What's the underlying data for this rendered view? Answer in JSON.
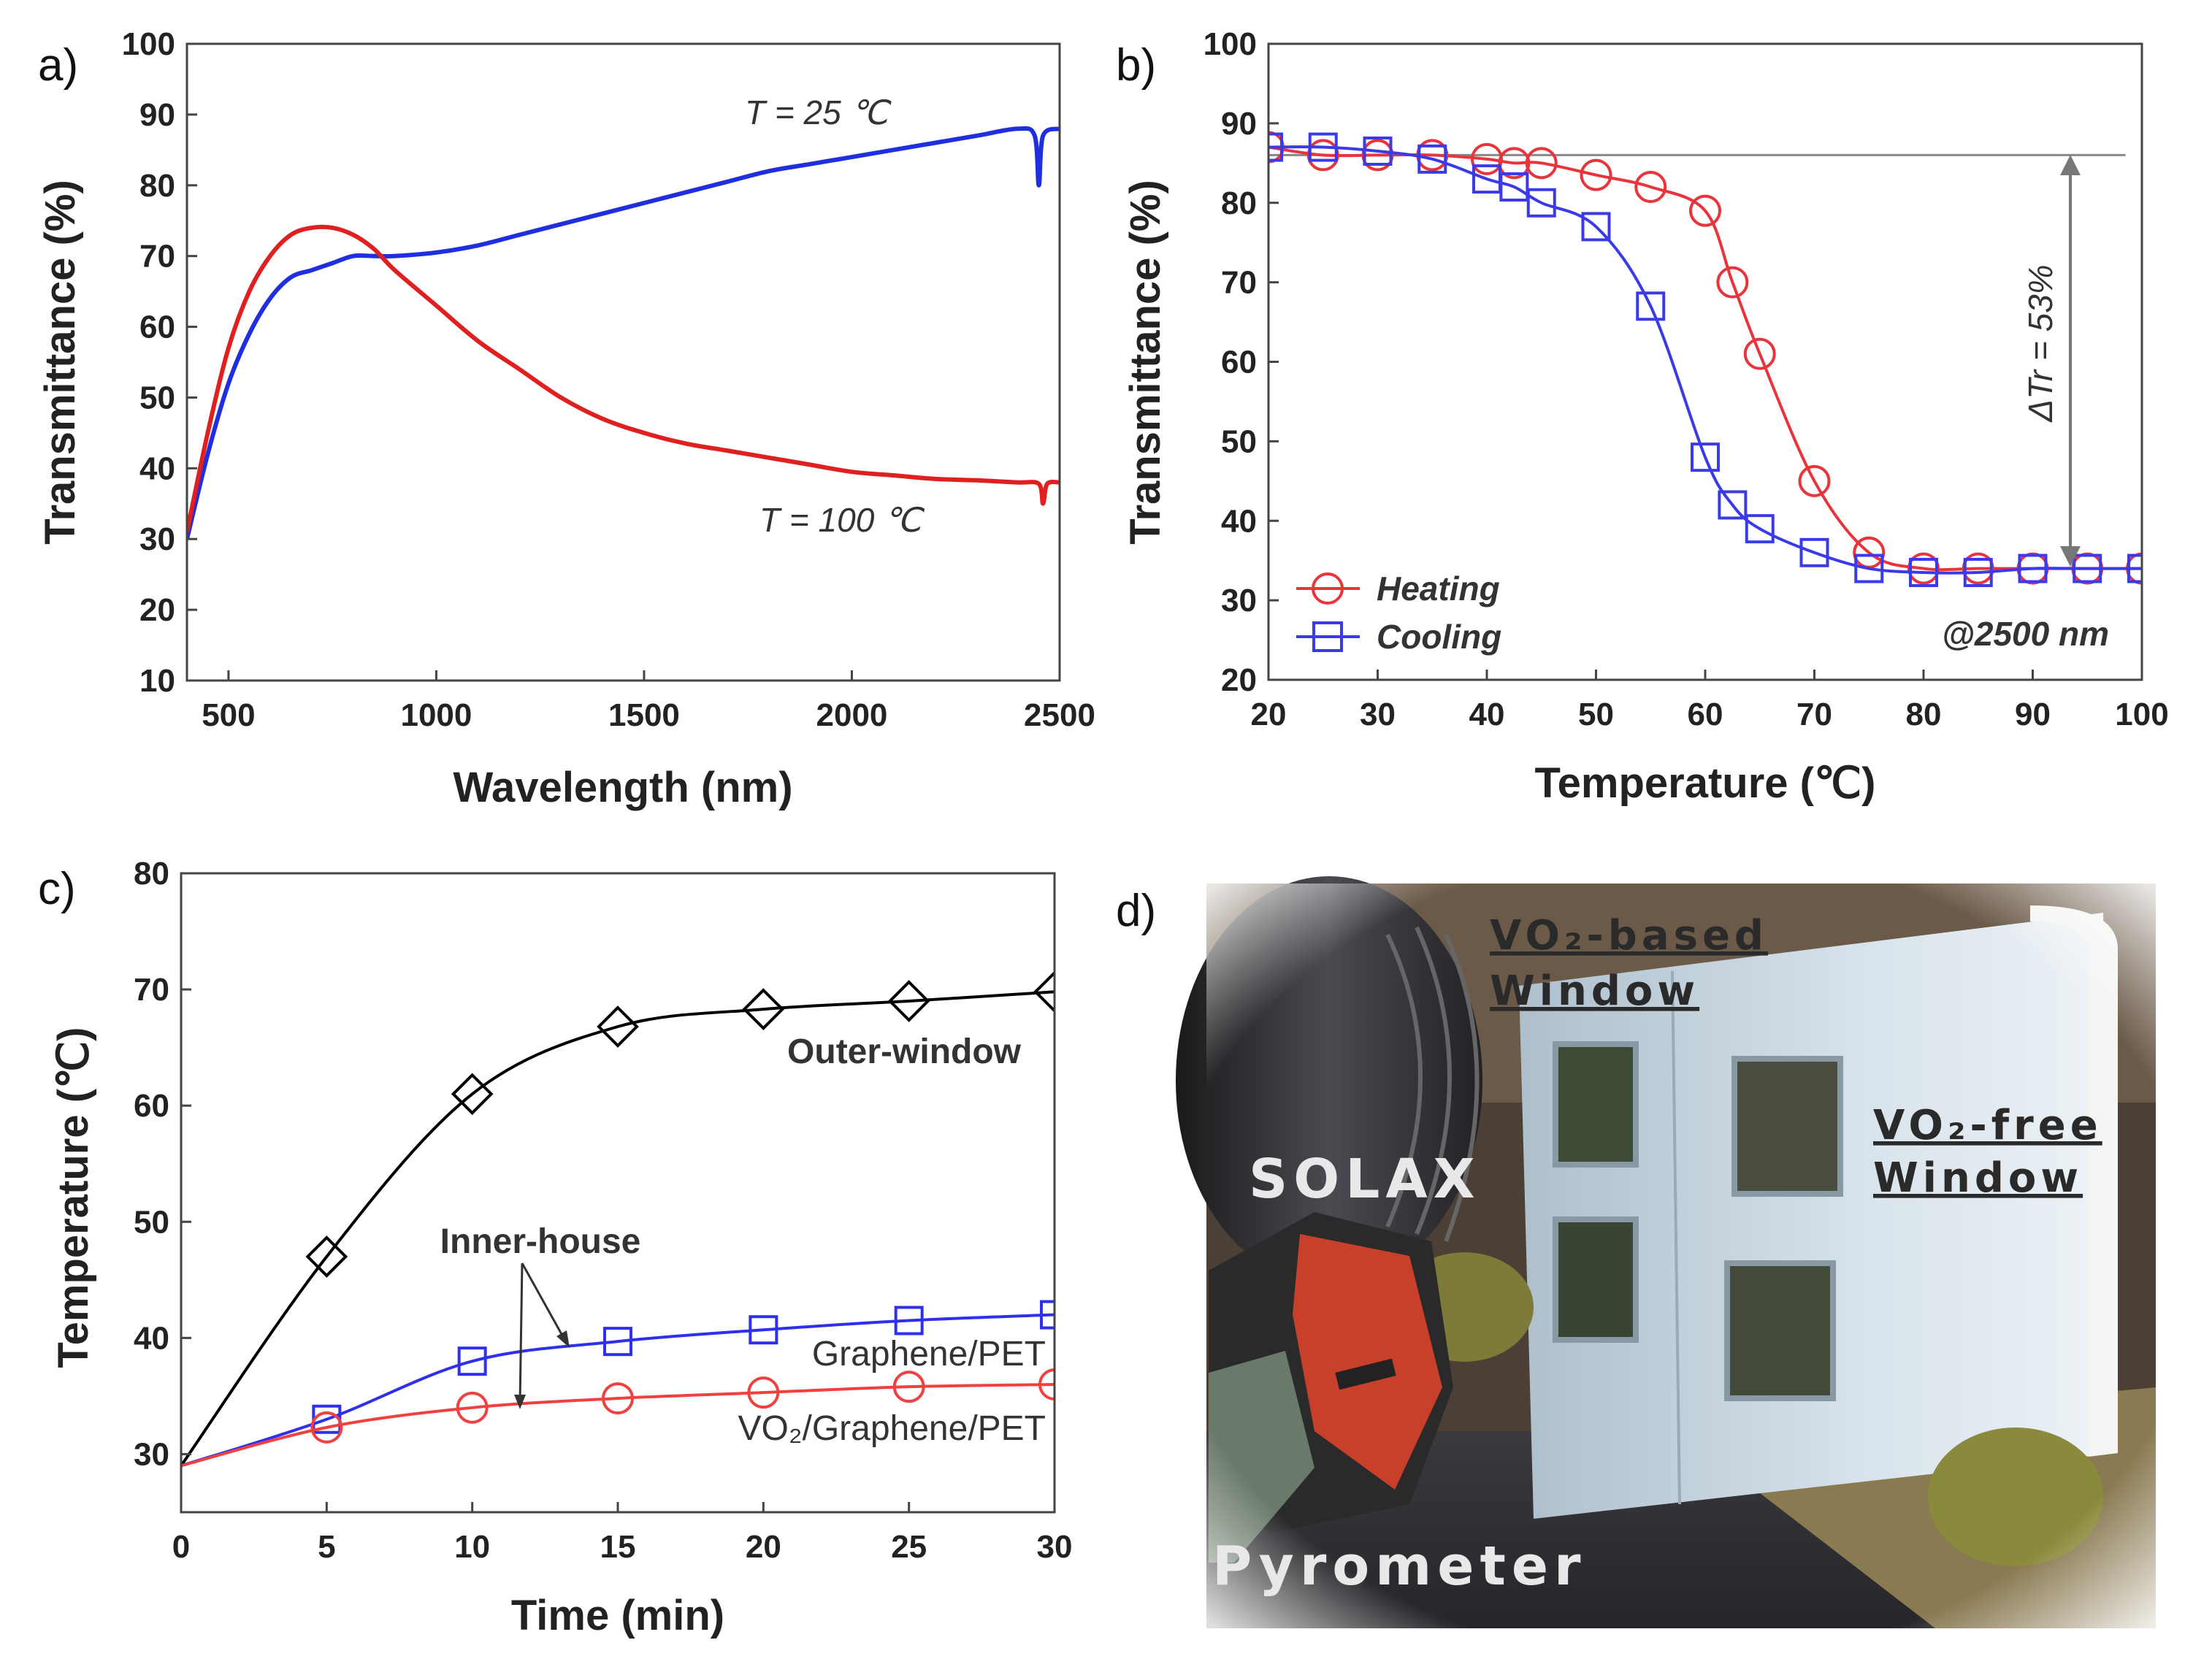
{
  "panels": {
    "a": {
      "label": "a)"
    },
    "b": {
      "label": "b)"
    },
    "c": {
      "label": "c)"
    },
    "d": {
      "label": "d)"
    }
  },
  "chart_data": [
    {
      "id": "a",
      "type": "line",
      "title": "",
      "xlabel": "Wavelength (nm)",
      "ylabel": "Transmittance (%)",
      "xlim": [
        400,
        2500
      ],
      "ylim": [
        10,
        100
      ],
      "xticks": [
        500,
        1000,
        1500,
        2000,
        2500
      ],
      "yticks": [
        10,
        20,
        30,
        40,
        50,
        60,
        70,
        80,
        90,
        100
      ],
      "annotations": [
        "T = 25 ℃",
        "T = 100 ℃"
      ],
      "series": [
        {
          "name": "T = 25 ℃",
          "color": "#1f2fe0",
          "x": [
            400,
            450,
            500,
            550,
            600,
            650,
            700,
            750,
            800,
            850,
            900,
            1000,
            1100,
            1200,
            1300,
            1400,
            1500,
            1600,
            1700,
            1800,
            1900,
            2000,
            2100,
            2200,
            2300,
            2400,
            2440,
            2450,
            2460,
            2500
          ],
          "y": [
            30,
            42,
            52,
            59,
            64,
            67,
            68,
            69,
            70,
            70,
            70,
            70.5,
            71.5,
            73,
            74.5,
            76,
            77.5,
            79,
            80.5,
            82,
            83,
            84,
            85,
            86,
            87,
            88,
            87,
            80,
            87,
            88
          ]
        },
        {
          "name": "T = 100 ℃",
          "color": "#e02020",
          "x": [
            400,
            450,
            500,
            550,
            600,
            650,
            700,
            750,
            800,
            850,
            900,
            1000,
            1100,
            1200,
            1300,
            1400,
            1500,
            1600,
            1700,
            1800,
            1900,
            2000,
            2100,
            2200,
            2300,
            2400,
            2450,
            2460,
            2470,
            2500
          ],
          "y": [
            31,
            45,
            57,
            65,
            70,
            73,
            74,
            74,
            73,
            71,
            68,
            63,
            58,
            54,
            50,
            47,
            45,
            43.5,
            42.5,
            41.5,
            40.5,
            39.5,
            39,
            38.5,
            38.3,
            38,
            37.8,
            35,
            37.8,
            38
          ]
        }
      ]
    },
    {
      "id": "b",
      "type": "line",
      "title": "",
      "xlabel": "Temperature (℃)",
      "ylabel": "Transmittance (%)",
      "xlim": [
        20,
        100
      ],
      "ylim": [
        20,
        100
      ],
      "xticks": [
        20,
        30,
        40,
        50,
        60,
        70,
        80,
        90,
        100
      ],
      "yticks": [
        20,
        30,
        40,
        50,
        60,
        70,
        80,
        90,
        100
      ],
      "reference_line": 86,
      "annotations": [
        "ΔTr = 53%",
        "@2500 nm"
      ],
      "legend": {
        "position": "bottom-left"
      },
      "series": [
        {
          "name": "Heating",
          "color": "#e8343a",
          "marker": "circle",
          "x": [
            20,
            25,
            30,
            35,
            40,
            42.5,
            45,
            50,
            55,
            60,
            62.5,
            65,
            70,
            75,
            80,
            85,
            90,
            95,
            100
          ],
          "y": [
            87,
            86,
            86,
            86,
            85.5,
            85,
            85,
            83.5,
            82,
            79,
            70,
            61,
            45,
            36,
            34,
            34,
            34,
            34,
            34
          ]
        },
        {
          "name": "Cooling",
          "color": "#3a3ae8",
          "marker": "square",
          "x": [
            20,
            25,
            30,
            35,
            40,
            42.5,
            45,
            50,
            55,
            60,
            62.5,
            65,
            70,
            75,
            80,
            85,
            90,
            95,
            100
          ],
          "y": [
            87,
            87,
            86.5,
            85.5,
            83,
            82,
            80,
            77,
            67,
            48,
            42,
            39,
            36,
            34,
            33.5,
            33.5,
            34,
            34,
            34
          ]
        }
      ]
    },
    {
      "id": "c",
      "type": "line",
      "title": "",
      "xlabel": "Time (min)",
      "ylabel": "Temperature (℃)",
      "xlim": [
        0,
        30
      ],
      "ylim": [
        25,
        80
      ],
      "xticks": [
        0,
        5,
        10,
        15,
        20,
        25,
        30
      ],
      "xtick_labels": [
        "0",
        "5",
        "10",
        "15",
        "20",
        "25",
        "30"
      ],
      "yticks": [
        30,
        40,
        50,
        60,
        70,
        80
      ],
      "annotations": [
        "Inner-house"
      ],
      "series": [
        {
          "name": "Outer-window",
          "color": "#000000",
          "marker": "diamond",
          "x": [
            0,
            5,
            10,
            15,
            20,
            25,
            30
          ],
          "y": [
            29,
            47,
            61,
            66.8,
            68.3,
            69,
            69.8
          ]
        },
        {
          "name": "Graphene/PET",
          "color": "#2f2ff0",
          "marker": "square",
          "x": [
            0,
            5,
            10,
            15,
            20,
            25,
            30
          ],
          "y": [
            29,
            33,
            38,
            39.7,
            40.7,
            41.5,
            42
          ]
        },
        {
          "name": "VO₂/Graphene/PET",
          "color": "#f04040",
          "marker": "circle",
          "x": [
            0,
            5,
            10,
            15,
            20,
            25,
            30
          ],
          "y": [
            29,
            32.3,
            34,
            34.8,
            35.3,
            35.8,
            36
          ]
        }
      ]
    }
  ],
  "photo": {
    "labels": {
      "solax": "SOLAX",
      "pyrometer": "Pyrometer",
      "vo2_based_1": "VO₂-based",
      "vo2_based_2": "Window",
      "vo2_free_1": "VO₂-free",
      "vo2_free_2": "Window"
    },
    "colors": {
      "bg": "#5a4a3a",
      "house": "#d8e4ec",
      "pyrometer": "#c8402a"
    }
  }
}
